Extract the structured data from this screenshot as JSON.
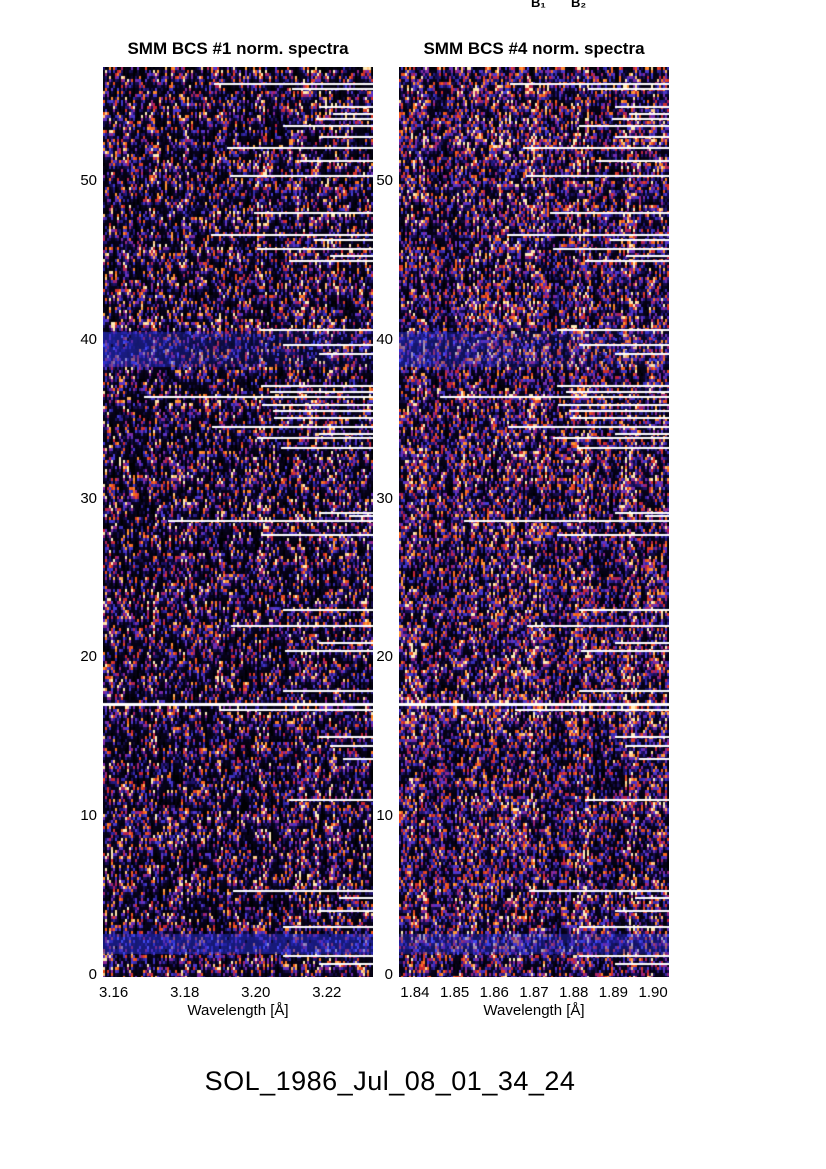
{
  "annotations": {
    "b1": "B₁",
    "b2": "B₂"
  },
  "footer": {
    "text": "SOL_1986_Jul_08_01_34_24"
  },
  "palette": {
    "background": "#ffffff",
    "text": "#000000",
    "heat_low": "#000005",
    "heat_blue": "#4646d7",
    "heat_purple": "#8228a0",
    "heat_red": "#c82332",
    "heat_orange": "#f55f1c",
    "heat_bright": "#ffebb9",
    "gap_line": "#ffffff",
    "band_blue": "#2830d7"
  },
  "chart_data": [
    {
      "type": "heatmap",
      "title": "SMM BCS #1 norm. spectra",
      "xlabel": "Wavelength [Å]",
      "ylabel": "",
      "xlim": [
        3.157,
        3.233
      ],
      "x_ticks": [
        3.16,
        3.18,
        3.2,
        3.22
      ],
      "ylim": [
        0,
        57.2
      ],
      "y_ticks": [
        0,
        10,
        20,
        30,
        40,
        50
      ],
      "grid": false,
      "legend": "none",
      "noise": {
        "style": "random speckle spectra, black/blue/red/orange",
        "density": "sparse",
        "gamma": 2.3,
        "seed": 11
      },
      "bands": [
        {
          "y_range": [
            38.3,
            40.5
          ],
          "color": "#2830d7",
          "left_weighted": true,
          "alpha": 0.62
        },
        {
          "y_range": [
            1.3,
            2.6
          ],
          "color": "#2830d7",
          "left_weighted": false,
          "alpha": 0.52
        }
      ],
      "gap_lines": [
        [
          56.1,
          0.41
        ],
        [
          55.8,
          0.7
        ],
        [
          54.7,
          0.8
        ],
        [
          54.2,
          0.85
        ],
        [
          53.9,
          0.79
        ],
        [
          53.5,
          0.665
        ],
        [
          52.8,
          0.8
        ],
        [
          52.1,
          0.46
        ],
        [
          51.3,
          0.73
        ],
        [
          50.3,
          0.47
        ],
        [
          48.0,
          0.56
        ],
        [
          46.6,
          0.4
        ],
        [
          46.3,
          0.78
        ],
        [
          45.7,
          0.57
        ],
        [
          45.3,
          0.84
        ],
        [
          45.0,
          0.69
        ],
        [
          40.6,
          0.585
        ],
        [
          39.7,
          0.665
        ],
        [
          39.1,
          0.8
        ],
        [
          37.1,
          0.585
        ],
        [
          36.7,
          0.62
        ],
        [
          36.4,
          0.15
        ],
        [
          35.9,
          0.59
        ],
        [
          35.5,
          0.63
        ],
        [
          35.1,
          0.635
        ],
        [
          34.5,
          0.405
        ],
        [
          34.1,
          0.8
        ],
        [
          33.8,
          0.57
        ],
        [
          33.2,
          0.66
        ],
        [
          29.1,
          0.8
        ],
        [
          28.9,
          0.91
        ],
        [
          28.6,
          0.24
        ],
        [
          27.7,
          0.585
        ],
        [
          23.0,
          0.665
        ],
        [
          22.0,
          0.475
        ],
        [
          20.9,
          0.8
        ],
        [
          20.4,
          0.675
        ],
        [
          17.9,
          0.665
        ],
        [
          17.0,
          0.0
        ],
        [
          16.7,
          0.43
        ],
        [
          15.0,
          0.8
        ],
        [
          14.4,
          0.84
        ],
        [
          13.6,
          0.89
        ],
        [
          11.0,
          0.69
        ],
        [
          5.3,
          0.48
        ],
        [
          4.85,
          0.875
        ],
        [
          4.0,
          0.8
        ],
        [
          3.0,
          0.665
        ],
        [
          1.2,
          0.665
        ],
        [
          0.7,
          0.8
        ]
      ]
    },
    {
      "type": "heatmap",
      "title": "SMM BCS #4 norm. spectra",
      "xlabel": "Wavelength [Å]",
      "ylabel": "",
      "xlim": [
        1.836,
        1.904
      ],
      "x_ticks": [
        1.84,
        1.85,
        1.86,
        1.87,
        1.88,
        1.89,
        1.9
      ],
      "ylim": [
        0,
        57.2
      ],
      "y_ticks": [
        0,
        10,
        20,
        30,
        40,
        50
      ],
      "grid": false,
      "legend": "none",
      "noise": {
        "style": "random speckle spectra, denser red field",
        "density": "dense",
        "gamma": 1.55,
        "seed": 77
      },
      "bands": [
        {
          "y_range": [
            38.3,
            40.5
          ],
          "color": "#2830d7",
          "left_weighted": true,
          "alpha": 0.5
        },
        {
          "y_range": [
            1.3,
            2.6
          ],
          "color": "#2830d7",
          "left_weighted": false,
          "alpha": 0.4
        }
      ],
      "gap_lines": [
        [
          56.1,
          0.41
        ],
        [
          55.8,
          0.7
        ],
        [
          54.7,
          0.8
        ],
        [
          54.2,
          0.85
        ],
        [
          53.9,
          0.79
        ],
        [
          53.5,
          0.665
        ],
        [
          52.8,
          0.8
        ],
        [
          52.1,
          0.46
        ],
        [
          51.3,
          0.73
        ],
        [
          50.3,
          0.47
        ],
        [
          48.0,
          0.56
        ],
        [
          46.6,
          0.4
        ],
        [
          46.3,
          0.78
        ],
        [
          45.7,
          0.57
        ],
        [
          45.3,
          0.84
        ],
        [
          45.0,
          0.69
        ],
        [
          40.6,
          0.585
        ],
        [
          39.7,
          0.665
        ],
        [
          39.1,
          0.8
        ],
        [
          37.1,
          0.585
        ],
        [
          36.7,
          0.62
        ],
        [
          36.4,
          0.15
        ],
        [
          35.9,
          0.59
        ],
        [
          35.5,
          0.63
        ],
        [
          35.1,
          0.635
        ],
        [
          34.5,
          0.405
        ],
        [
          34.1,
          0.8
        ],
        [
          33.8,
          0.57
        ],
        [
          33.2,
          0.66
        ],
        [
          29.1,
          0.8
        ],
        [
          28.9,
          0.91
        ],
        [
          28.6,
          0.24
        ],
        [
          27.7,
          0.585
        ],
        [
          23.0,
          0.665
        ],
        [
          22.0,
          0.475
        ],
        [
          20.9,
          0.8
        ],
        [
          20.4,
          0.675
        ],
        [
          17.9,
          0.665
        ],
        [
          17.0,
          0.0
        ],
        [
          16.7,
          0.43
        ],
        [
          15.0,
          0.8
        ],
        [
          14.4,
          0.84
        ],
        [
          13.6,
          0.89
        ],
        [
          11.0,
          0.69
        ],
        [
          5.3,
          0.48
        ],
        [
          4.85,
          0.875
        ],
        [
          4.0,
          0.8
        ],
        [
          3.0,
          0.665
        ],
        [
          1.2,
          0.665
        ],
        [
          0.7,
          0.8
        ]
      ]
    }
  ]
}
